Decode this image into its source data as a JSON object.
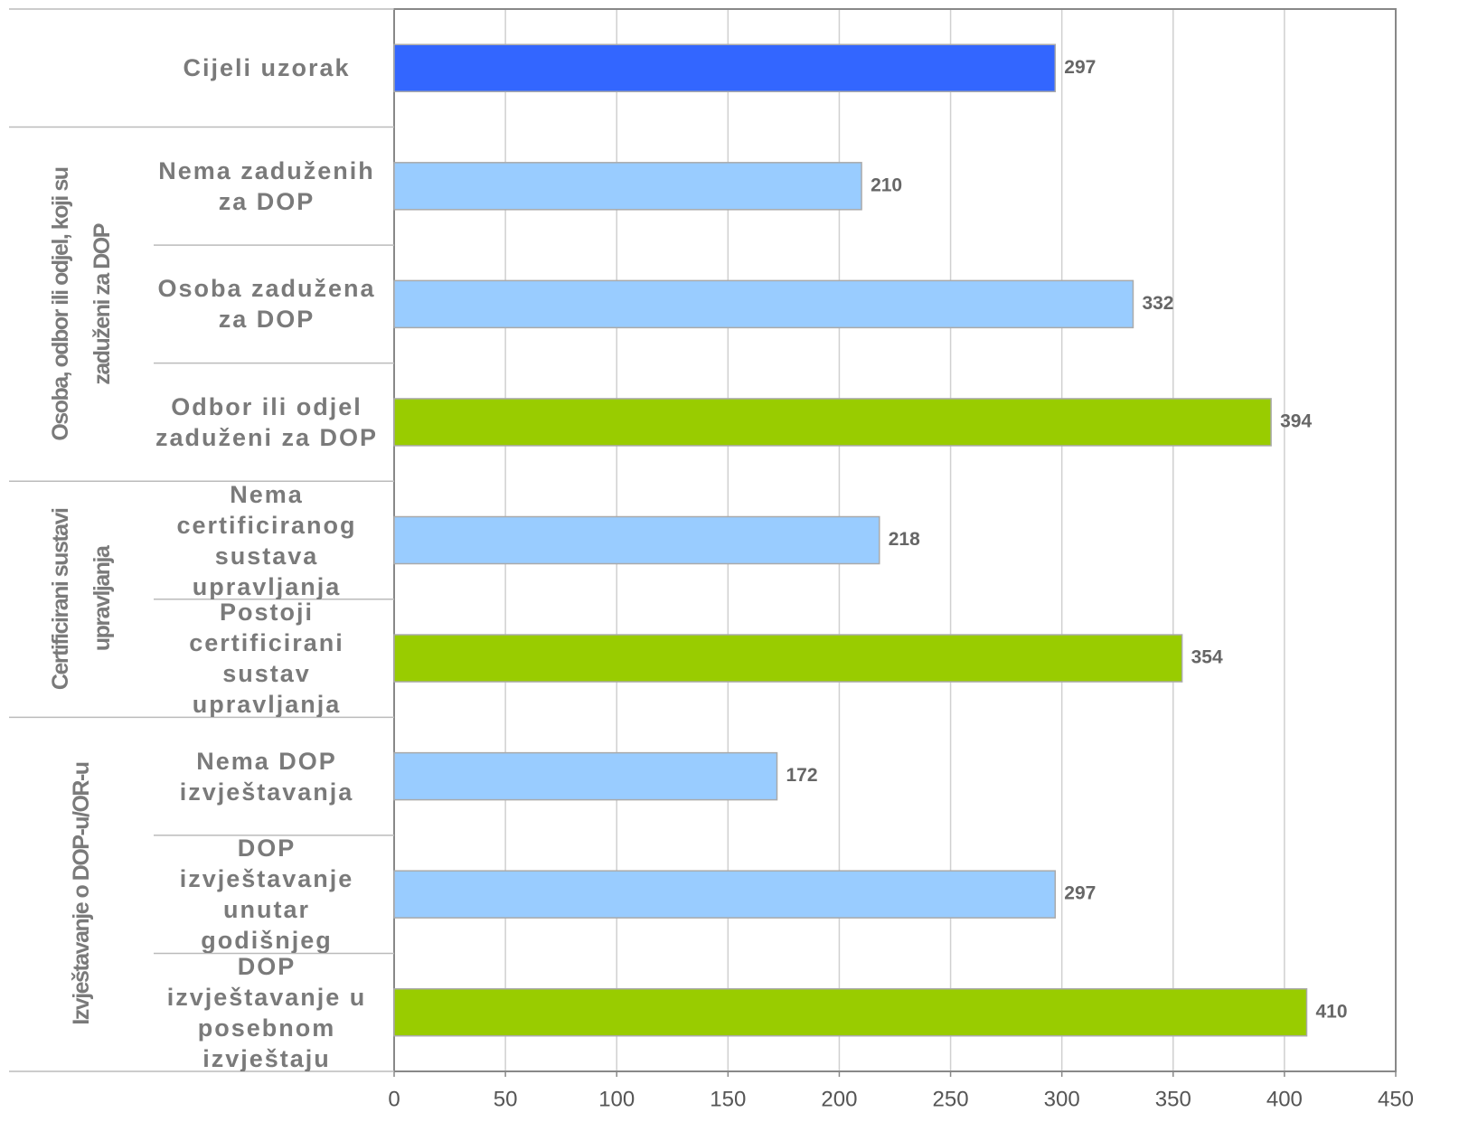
{
  "chart_data": {
    "type": "bar",
    "orientation": "horizontal",
    "groups": [
      {
        "label": null,
        "categories": [
          "Cijeli uzorak"
        ]
      },
      {
        "label": "Osoba, odbor ili odjel, koji su zaduženi za DOP",
        "categories": [
          "Nema zaduženih za DOP",
          "Osoba zadužena za DOP",
          "Odbor ili odjel zaduženi za DOP"
        ]
      },
      {
        "label": "Certificirani sustavi upravljanja",
        "categories": [
          "Nema certificiranog sustava upravljanja",
          "Postoji certificirani sustav upravljanja"
        ]
      },
      {
        "label": "Izvještavanje o DOP-u/OR-u",
        "categories": [
          "Nema DOP izvještavanja",
          "DOP izvještavanje unutar godišnjeg",
          "DOP izvještavanje u posebnom izvještaju"
        ]
      }
    ],
    "values": [
      297,
      210,
      332,
      394,
      218,
      354,
      172,
      297,
      410
    ],
    "colors": [
      "#3366ff",
      "#99ccff",
      "#99ccff",
      "#99cc00",
      "#99ccff",
      "#99cc00",
      "#99ccff",
      "#99ccff",
      "#99cc00"
    ],
    "xlim": [
      0,
      450
    ],
    "xticks": [
      0,
      50,
      100,
      150,
      200,
      250,
      300,
      350,
      400,
      450
    ],
    "grid": true
  }
}
